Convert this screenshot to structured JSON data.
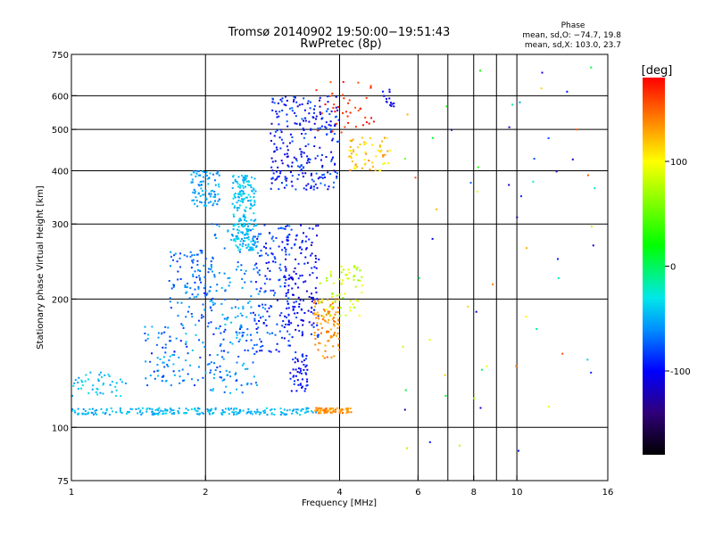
{
  "chart_data": {
    "type": "scatter",
    "title": "Tromsø 20140902 19:50:00−19:51:43",
    "subtitle": "RwPretec (8p)",
    "xlabel": "Frequency [MHz]",
    "ylabel": "Stationary phase Virtual Height [km]",
    "x_scale": "log",
    "y_scale": "log",
    "xlim": [
      1,
      16
    ],
    "ylim": [
      75,
      750
    ],
    "x_ticks": [
      1,
      2,
      4,
      6,
      8,
      10,
      16
    ],
    "x_gridlines": [
      2,
      4,
      6,
      7,
      8,
      9,
      10
    ],
    "y_ticks": [
      75,
      100,
      200,
      300,
      400,
      500,
      600,
      750
    ],
    "y_gridlines": [
      100,
      200,
      300,
      400,
      500,
      600
    ],
    "grid": true,
    "stats": {
      "heading": "Phase",
      "line_o": "mean, sd,O: −74.7, 19.8",
      "line_x": "mean, sd,X: 103.0, 23.7"
    },
    "colorbar": {
      "label": "[deg]",
      "range": [
        -180,
        180
      ],
      "ticks": [
        100,
        0,
        -100
      ],
      "palette": [
        "#000000",
        "#30007a",
        "#0000ff",
        "#0090ff",
        "#00e8e8",
        "#00ff00",
        "#ffff00",
        "#ff8000",
        "#ff0000"
      ],
      "stops": [
        -180,
        -140,
        -100,
        -60,
        -30,
        20,
        100,
        140,
        180
      ]
    },
    "clusters": [
      {
        "f": [
          1.0,
          3.55
        ],
        "h": [
          107,
          111
        ],
        "phase": [
          -60,
          -35
        ],
        "n": 220
      },
      {
        "f": [
          3.5,
          4.25
        ],
        "h": [
          108,
          111
        ],
        "phase": [
          120,
          150
        ],
        "n": 70
      },
      {
        "f": [
          1.0,
          1.35
        ],
        "h": [
          118,
          135
        ],
        "phase": [
          -60,
          -30
        ],
        "n": 45
      },
      {
        "f": [
          1.45,
          2.5
        ],
        "h": [
          125,
          175
        ],
        "phase": [
          -95,
          -40
        ],
        "n": 130
      },
      {
        "f": [
          1.65,
          2.1
        ],
        "h": [
          175,
          260
        ],
        "phase": [
          -90,
          -50
        ],
        "n": 110
      },
      {
        "f": [
          1.85,
          2.15
        ],
        "h": [
          330,
          400
        ],
        "phase": [
          -70,
          -40
        ],
        "n": 90
      },
      {
        "f": [
          2.05,
          2.65
        ],
        "h": [
          120,
          300
        ],
        "phase": [
          -80,
          -40
        ],
        "n": 150
      },
      {
        "f": [
          2.3,
          2.6
        ],
        "h": [
          260,
          390
        ],
        "phase": [
          -55,
          -30
        ],
        "n": 200
      },
      {
        "f": [
          2.55,
          3.1
        ],
        "h": [
          150,
          300
        ],
        "phase": [
          -110,
          -60
        ],
        "n": 140
      },
      {
        "f": [
          2.8,
          4.0
        ],
        "h": [
          360,
          600
        ],
        "phase": [
          -120,
          -70
        ],
        "n": 260
      },
      {
        "f": [
          3.0,
          3.6
        ],
        "h": [
          160,
          300
        ],
        "phase": [
          -120,
          -80
        ],
        "n": 150
      },
      {
        "f": [
          3.1,
          3.4
        ],
        "h": [
          120,
          150
        ],
        "phase": [
          -110,
          -80
        ],
        "n": 50
      },
      {
        "f": [
          3.5,
          4.0
        ],
        "h": [
          145,
          200
        ],
        "phase": [
          120,
          155
        ],
        "n": 90
      },
      {
        "f": [
          3.6,
          4.5
        ],
        "h": [
          180,
          240
        ],
        "phase": [
          60,
          105
        ],
        "n": 70
      },
      {
        "f": [
          4.2,
          5.2
        ],
        "h": [
          400,
          480
        ],
        "phase": [
          90,
          140
        ],
        "n": 60
      },
      {
        "f": [
          3.5,
          4.8
        ],
        "h": [
          480,
          650
        ],
        "phase": [
          150,
          180
        ],
        "n": 40
      },
      {
        "f": [
          5.0,
          5.3
        ],
        "h": [
          560,
          620
        ],
        "phase": [
          -120,
          -90
        ],
        "n": 15
      },
      {
        "f": [
          5.5,
          15.0
        ],
        "h": [
          85,
          700
        ],
        "phase": [
          -130,
          160
        ],
        "n": 60
      }
    ]
  }
}
